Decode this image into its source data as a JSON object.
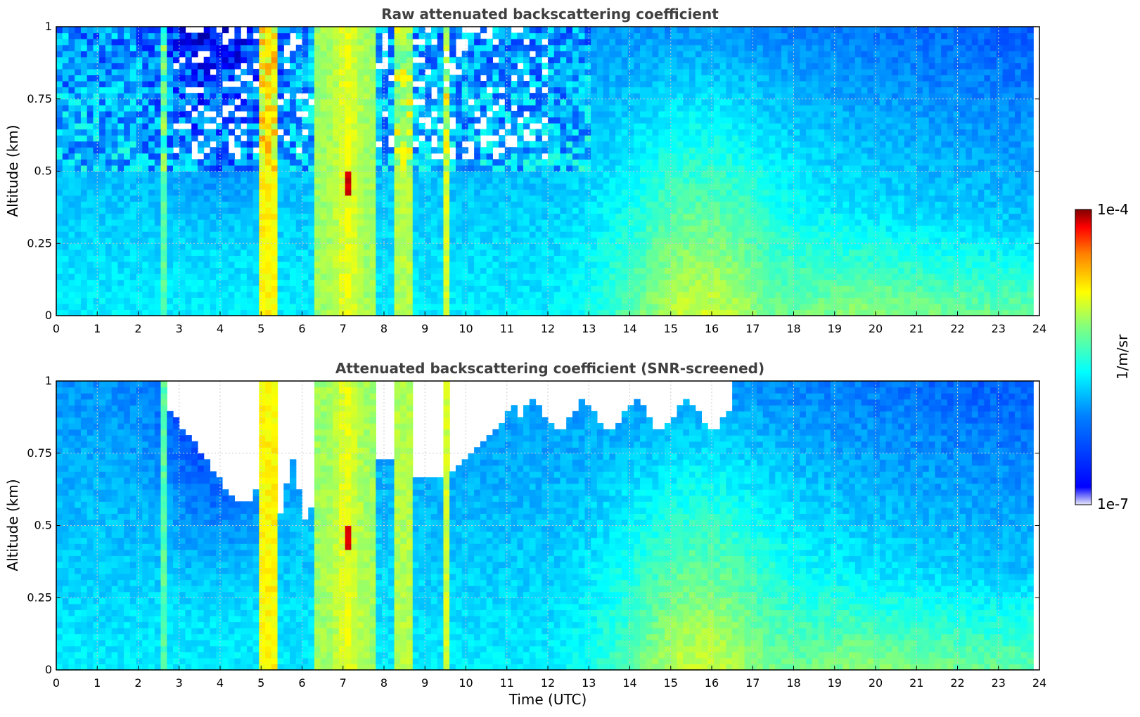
{
  "chart_data": [
    {
      "type": "heatmap",
      "title": "Raw attenuated backscattering coefficient",
      "ylabel": "Altitude (km)",
      "xlabel": "",
      "xlim": [
        0,
        24
      ],
      "ylim": [
        0,
        1
      ],
      "x_ticks": [
        "0",
        "1",
        "2",
        "3",
        "4",
        "5",
        "6",
        "7",
        "8",
        "9",
        "10",
        "11",
        "12",
        "13",
        "14",
        "15",
        "16",
        "17",
        "18",
        "19",
        "20",
        "21",
        "22",
        "23",
        "24"
      ],
      "y_ticks": [
        "0",
        "0.25",
        "0.5",
        "0.75",
        "1"
      ],
      "data_end_hour": 23.8,
      "screened": false,
      "grid": true
    },
    {
      "type": "heatmap",
      "title": "Attenuated backscattering coefficient (SNR-screened)",
      "ylabel": "Altitude (km)",
      "xlabel": "Time (UTC)",
      "xlim": [
        0,
        24
      ],
      "ylim": [
        0,
        1
      ],
      "x_ticks": [
        "0",
        "1",
        "2",
        "3",
        "4",
        "5",
        "6",
        "7",
        "8",
        "9",
        "10",
        "11",
        "12",
        "13",
        "14",
        "15",
        "16",
        "17",
        "18",
        "19",
        "20",
        "21",
        "22",
        "23",
        "24"
      ],
      "y_ticks": [
        "0",
        "0.25",
        "0.5",
        "0.75",
        "1"
      ],
      "data_end_hour": 23.8,
      "screened": true,
      "grid": true
    }
  ],
  "colorbar": {
    "label": "1/m/sr",
    "max_label": "1e-4",
    "min_label": "1e-7",
    "colormap": "jet",
    "colors": [
      "#e8e8f8",
      "#0000ff",
      "#0080ff",
      "#00ffff",
      "#80ff80",
      "#ffff00",
      "#ff8000",
      "#ff0000",
      "#800000"
    ]
  }
}
